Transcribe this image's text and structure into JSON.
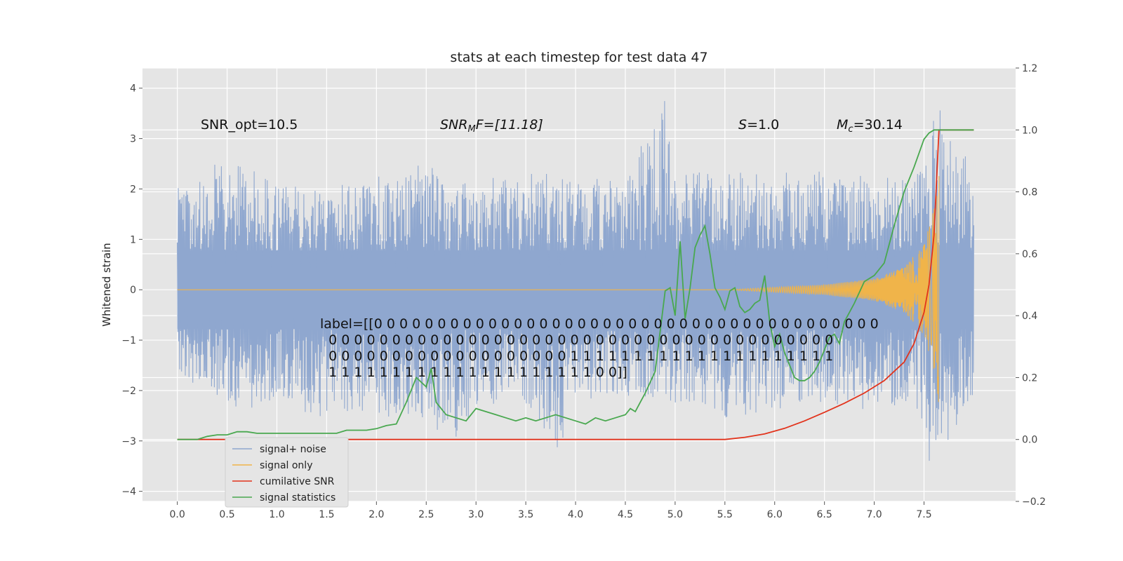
{
  "chart_data": {
    "type": "line",
    "title": "stats at each timestep for test data 47",
    "ylabel": "Whitened strain",
    "xlabel": "",
    "xlim": [
      -0.35,
      8.42
    ],
    "ylim": [
      -4.2,
      4.4
    ],
    "ylim_right": [
      -0.2,
      1.2
    ],
    "x_ticks": [
      "0.0",
      "0.5",
      "1.0",
      "1.5",
      "2.0",
      "2.5",
      "3.0",
      "3.5",
      "4.0",
      "4.5",
      "5.0",
      "5.5",
      "6.0",
      "6.5",
      "7.0",
      "7.5"
    ],
    "y_ticks": [
      "4",
      "3",
      "2",
      "1",
      "0",
      "−1",
      "−2",
      "−3",
      "−4"
    ],
    "y_ticks_right": [
      "1.2",
      "1.0",
      "0.8",
      "0.6",
      "0.4",
      "0.2",
      "0.0",
      "−0.2"
    ],
    "grid": true,
    "legend_position": "lower-left",
    "colors": {
      "signal_noise": "#8fa7cf",
      "signal_only": "#f0b44a",
      "cumulative_snr": "#e2331c",
      "signal_statistics": "#49a84f",
      "plot_bg": "#e5e5e5",
      "grid": "#ffffff"
    },
    "annotations": {
      "snr_opt": "SNR_opt=10.5",
      "snr_mf_italic": "SNR",
      "snr_mf_sub": "M",
      "snr_mf_rest": "F=[11.18]",
      "s_italic": "S",
      "s_rest": "=1.0",
      "mc_italic": "M",
      "mc_sub": "c",
      "mc_rest": "=30.14"
    },
    "label_text": [
      "label=[[0 0 0 0 0 0 0 0 0 0 0 0 0 0 0 0 0 0 0 0 0 0 0 0 0 0 0 0 0 0 0 0 0 0 0 0 0 0 0 0",
      "  0 0 0 0 0 0 0 0 0 0 0 0 0 0 0 0 0 0 0 0 0 0 0 0 0 0 0 0 0 0 0 0 0 0 0 0 0 0 0 0",
      "  0 0 0 0 0 0 0 0 0 0 0 0 0 0 0 0 0 0 0 1 1 1 1 1 1 1 1 1 1 1 1 1 1 1 1 1 1 1 1 1",
      "  1 1 1 1 1 1 1 1 1 1 1 1 1 1 1 1 1 1 1 1 1 0 0]]"
    ],
    "series": [
      {
        "name": "signal+ noise",
        "kind": "noise-band",
        "x_range": [
          0.0,
          8.0
        ],
        "core_amplitude": 0.78,
        "upper_envelope": [
          [
            0.0,
            2.2
          ],
          [
            0.5,
            2.6
          ],
          [
            1.0,
            2.2
          ],
          [
            1.5,
            2.0
          ],
          [
            2.0,
            2.3
          ],
          [
            2.5,
            2.5
          ],
          [
            3.0,
            2.2
          ],
          [
            3.5,
            2.3
          ],
          [
            4.0,
            2.3
          ],
          [
            4.5,
            2.2
          ],
          [
            4.9,
            4.0
          ],
          [
            5.0,
            2.3
          ],
          [
            5.5,
            2.4
          ],
          [
            6.0,
            2.3
          ],
          [
            6.5,
            2.4
          ],
          [
            7.0,
            2.3
          ],
          [
            7.5,
            2.5
          ],
          [
            7.62,
            3.7
          ],
          [
            8.0,
            2.4
          ]
        ],
        "lower_envelope": [
          [
            0.0,
            -1.7
          ],
          [
            0.5,
            -2.4
          ],
          [
            1.0,
            -2.3
          ],
          [
            1.5,
            -2.6
          ],
          [
            2.0,
            -2.6
          ],
          [
            2.5,
            -2.6
          ],
          [
            2.88,
            -3.25
          ],
          [
            3.0,
            -2.3
          ],
          [
            3.5,
            -2.4
          ],
          [
            3.8,
            -3.4
          ],
          [
            4.0,
            -2.2
          ],
          [
            4.5,
            -2.3
          ],
          [
            5.0,
            -2.3
          ],
          [
            5.5,
            -2.6
          ],
          [
            6.0,
            -2.4
          ],
          [
            6.5,
            -2.3
          ],
          [
            7.0,
            -2.4
          ],
          [
            7.5,
            -2.6
          ],
          [
            7.55,
            -3.7
          ],
          [
            8.0,
            -2.2
          ]
        ]
      },
      {
        "name": "signal only",
        "kind": "chirp",
        "x_range": [
          0.0,
          7.65
        ],
        "amplitude_envelope": [
          [
            0.0,
            0.0
          ],
          [
            5.5,
            0.0
          ],
          [
            6.0,
            0.05
          ],
          [
            6.5,
            0.1
          ],
          [
            7.0,
            0.22
          ],
          [
            7.3,
            0.45
          ],
          [
            7.5,
            0.9
          ],
          [
            7.6,
            1.6
          ],
          [
            7.65,
            2.3
          ]
        ]
      },
      {
        "name": "cumilative SNR",
        "axis": "right",
        "x": [
          0.0,
          5.5,
          5.7,
          5.9,
          6.1,
          6.3,
          6.5,
          6.7,
          6.9,
          7.1,
          7.3,
          7.4,
          7.5,
          7.55,
          7.6,
          7.63,
          7.65,
          8.0
        ],
        "values": [
          0.0,
          0.0,
          0.007,
          0.018,
          0.036,
          0.06,
          0.088,
          0.117,
          0.15,
          0.19,
          0.25,
          0.31,
          0.41,
          0.5,
          0.66,
          0.86,
          1.0,
          1.0
        ]
      },
      {
        "name": "signal statistics",
        "axis": "right",
        "x": [
          0.0,
          0.2,
          0.3,
          0.4,
          0.5,
          0.6,
          0.7,
          0.8,
          0.9,
          1.0,
          1.2,
          1.4,
          1.5,
          1.6,
          1.7,
          1.8,
          1.9,
          2.0,
          2.1,
          2.2,
          2.3,
          2.4,
          2.5,
          2.55,
          2.6,
          2.7,
          2.8,
          2.9,
          3.0,
          3.1,
          3.2,
          3.3,
          3.4,
          3.5,
          3.6,
          3.7,
          3.8,
          3.9,
          4.0,
          4.1,
          4.2,
          4.3,
          4.4,
          4.5,
          4.55,
          4.6,
          4.65,
          4.7,
          4.8,
          4.9,
          4.95,
          5.0,
          5.05,
          5.1,
          5.15,
          5.2,
          5.25,
          5.3,
          5.35,
          5.4,
          5.45,
          5.5,
          5.55,
          5.6,
          5.65,
          5.7,
          5.75,
          5.8,
          5.85,
          5.9,
          5.95,
          6.0,
          6.05,
          6.1,
          6.15,
          6.2,
          6.25,
          6.3,
          6.35,
          6.4,
          6.45,
          6.5,
          6.55,
          6.6,
          6.65,
          6.7,
          6.8,
          6.9,
          7.0,
          7.1,
          7.2,
          7.3,
          7.4,
          7.5,
          7.55,
          7.6,
          7.65,
          8.0
        ],
        "values": [
          0.0,
          0.0,
          0.01,
          0.015,
          0.015,
          0.025,
          0.025,
          0.02,
          0.02,
          0.02,
          0.02,
          0.02,
          0.02,
          0.02,
          0.03,
          0.03,
          0.03,
          0.035,
          0.045,
          0.05,
          0.12,
          0.2,
          0.17,
          0.23,
          0.12,
          0.08,
          0.07,
          0.06,
          0.1,
          0.09,
          0.08,
          0.07,
          0.06,
          0.07,
          0.06,
          0.07,
          0.08,
          0.07,
          0.06,
          0.05,
          0.07,
          0.06,
          0.07,
          0.08,
          0.1,
          0.09,
          0.12,
          0.15,
          0.22,
          0.48,
          0.49,
          0.4,
          0.64,
          0.39,
          0.49,
          0.62,
          0.66,
          0.69,
          0.6,
          0.49,
          0.46,
          0.42,
          0.48,
          0.49,
          0.43,
          0.41,
          0.42,
          0.44,
          0.45,
          0.53,
          0.38,
          0.3,
          0.34,
          0.28,
          0.24,
          0.2,
          0.19,
          0.19,
          0.2,
          0.22,
          0.25,
          0.29,
          0.33,
          0.34,
          0.31,
          0.38,
          0.44,
          0.51,
          0.53,
          0.57,
          0.69,
          0.8,
          0.88,
          0.97,
          0.99,
          1.0,
          1.0,
          1.0
        ]
      }
    ]
  }
}
